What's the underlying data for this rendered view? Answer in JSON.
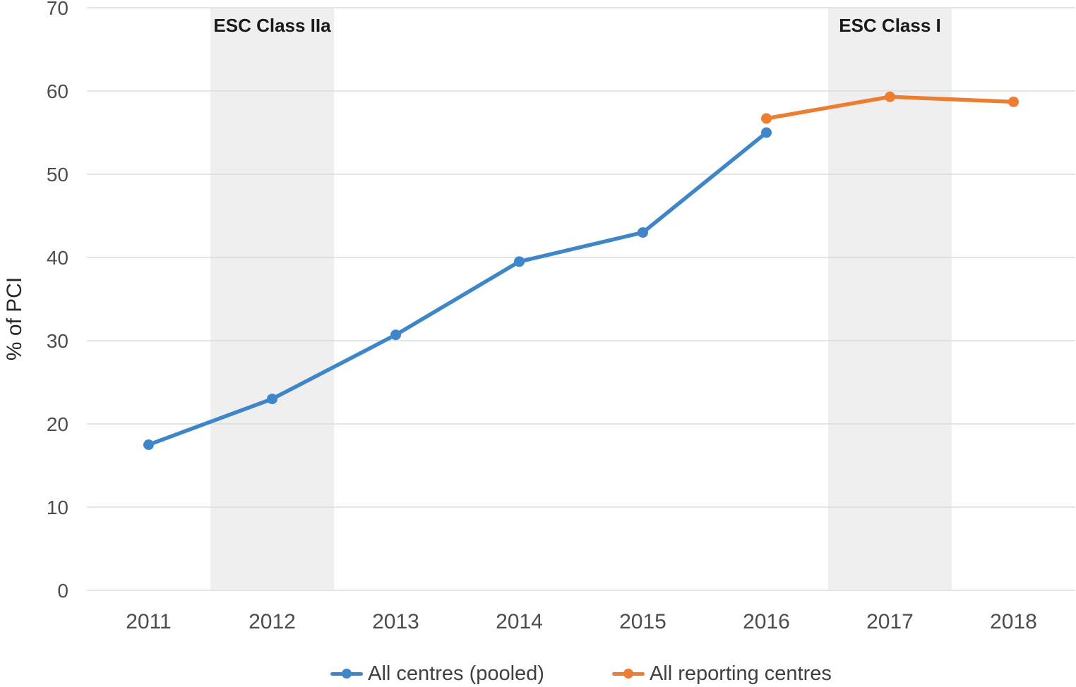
{
  "figure": {
    "background": "#ffffff"
  },
  "legend": {
    "items": [
      {
        "label": "All centres (pooled)",
        "color": "#3F86C8"
      },
      {
        "label": "All reporting centres",
        "color": "#ED7D31"
      }
    ]
  },
  "chart_data": {
    "type": "line",
    "title": "",
    "xlabel": "",
    "ylabel": "% of PCI",
    "categories": [
      "2011",
      "2012",
      "2013",
      "2014",
      "2015",
      "2016",
      "2017",
      "2018"
    ],
    "series": [
      {
        "name": "All centres (pooled)",
        "color": "#3F86C8",
        "values": [
          17.5,
          23,
          30.7,
          39.5,
          43,
          55,
          null,
          null
        ]
      },
      {
        "name": "All reporting centres",
        "color": "#ED7D31",
        "values": [
          null,
          null,
          null,
          null,
          null,
          56.7,
          59.3,
          58.7
        ]
      }
    ],
    "ylim": [
      0,
      70
    ],
    "ytick_step": 10,
    "yticks": [
      0,
      10,
      20,
      30,
      40,
      50,
      60,
      70
    ],
    "grid": true,
    "gridline_color": "#D6D6D6",
    "axis_text_color": "#4D4D4D",
    "legend_position": "bottom",
    "annotations": [
      {
        "label": "ESC Class IIa",
        "category": "2012"
      },
      {
        "label": "ESC Class I",
        "category": "2017"
      }
    ],
    "band_color": "#EFEFEF",
    "band_label_color": "#1A1A1A"
  }
}
